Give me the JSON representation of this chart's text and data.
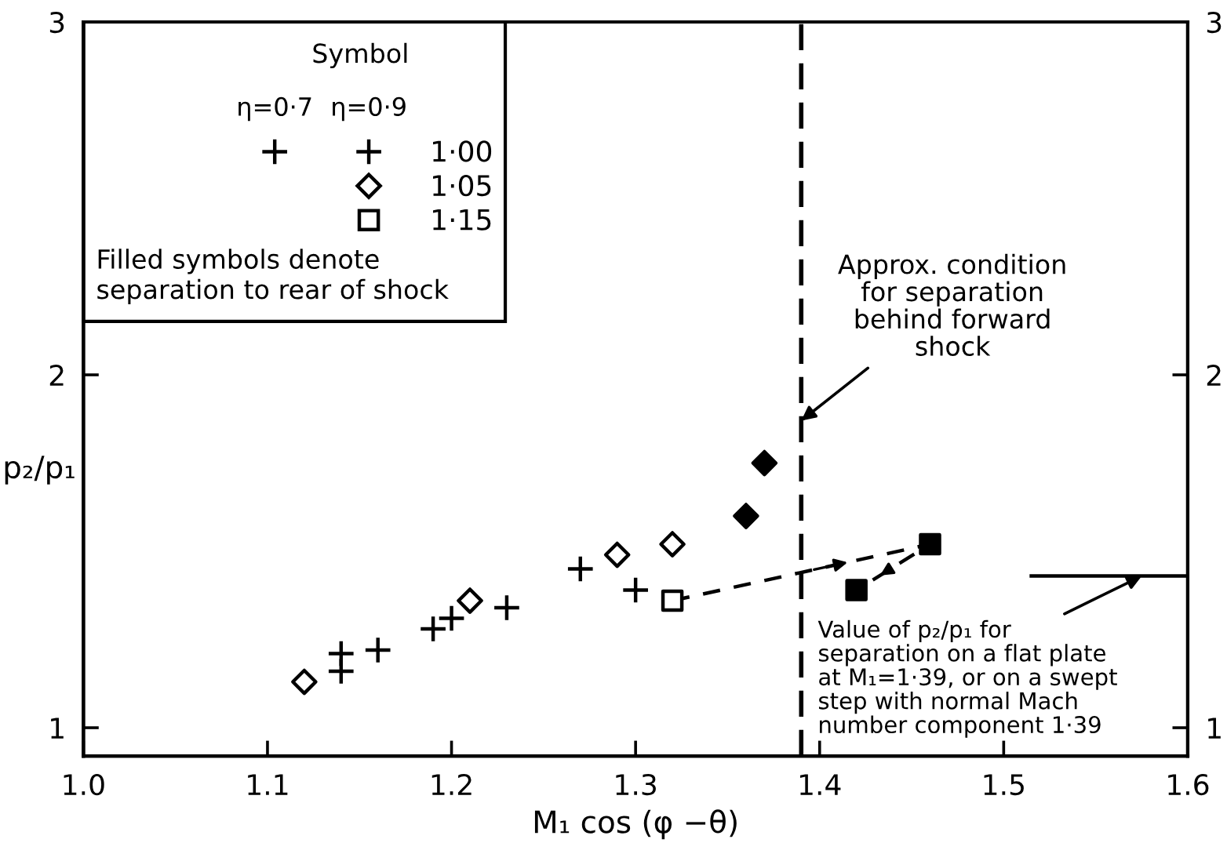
{
  "chart_data": {
    "type": "scatter",
    "xlabel": "M₁ cos (φ −θ)",
    "ylabel": "p₂/p₁",
    "legend_title": "Symbol",
    "legend": "top left",
    "xlim": [
      1.0,
      1.6
    ],
    "xticks": [
      {
        "value": 1.0,
        "label": "1.0"
      },
      1.1,
      1.2,
      1.3,
      1.4,
      1.5,
      1.6
    ],
    "ylim": [
      0.92,
      3
    ],
    "yticks": [
      1,
      2,
      3
    ],
    "y2lim": [
      0.92,
      3
    ],
    "y2ticks": [
      1,
      2,
      3
    ],
    "series": [
      {
        "name": "1·00",
        "color": "#000000",
        "marker": "cross",
        "x": [
          1.14,
          1.19,
          1.2,
          1.23,
          1.3
        ],
        "values": [
          1.16,
          1.28,
          1.31,
          1.34,
          1.39
        ]
      },
      {
        "color": "#000000",
        "marker": "cross",
        "x": [
          1.14,
          1.16,
          1.27
        ],
        "values": [
          1.21,
          1.22,
          1.45
        ]
      },
      {
        "name": "1·05",
        "color": "#000000",
        "marker": "diamond",
        "colors": [
          "#ffffff",
          "#ffffff",
          "#ffffff",
          "#ffffff",
          "#000000",
          "#000000"
        ],
        "x": [
          1.12,
          1.21,
          1.29,
          1.32,
          1.36,
          1.37
        ],
        "values": [
          1.13,
          1.36,
          1.49,
          1.52,
          1.6,
          1.75
        ]
      },
      {
        "name": "1·15",
        "type": "line",
        "color": "#000000",
        "marker": "square",
        "line_style": "dashed",
        "colors": [
          "#ffffff",
          "#000000",
          "#000000"
        ],
        "x": [
          1.32,
          1.46,
          1.42
        ],
        "values": [
          1.36,
          1.52,
          1.39
        ]
      },
      {
        "type": "line",
        "color": "#000000",
        "marker": "none",
        "line_style": "solid",
        "x": [
          1.515,
          1.6
        ],
        "values": [
          1.43,
          1.43
        ]
      }
    ],
    "ref_lines": [
      {
        "axis": "x",
        "value": 1.39,
        "line_style": "dashed",
        "color": "#000000"
      }
    ],
    "annotations": [
      "η=0·7",
      "η=0·9",
      "Filled symbols denote\nseparation to rear of shock",
      {
        "text": "Approx. condition\nfor separation\nbehind forward\nshock",
        "x": 1.39,
        "y": 1.87
      },
      {
        "text": "Value of p₂/p₁ for\nseparation on a flat plate\nat M₁=1·39, or on a swept\nstep with normal Mach\nnumber component 1·39",
        "x": 1.575,
        "y": 1.43
      }
    ]
  }
}
